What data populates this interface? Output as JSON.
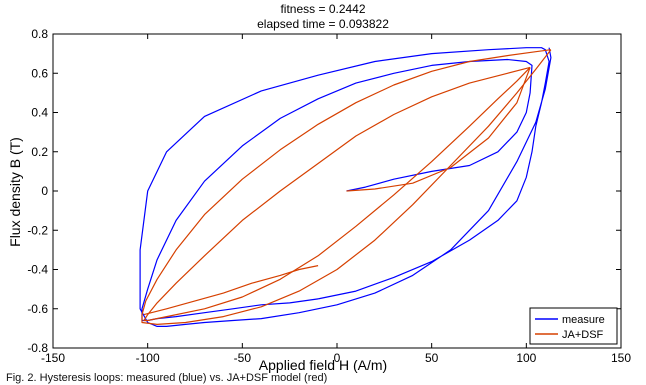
{
  "figure": {
    "title_line1": "fitness = 0.2442",
    "title_line2": "elapsed time = 0.093822",
    "caption": "Fig. 2. Hysteresis loops: measured (blue) vs. JA+DSF model (red)"
  },
  "chart_data": {
    "type": "line",
    "title": "fitness = 0.2442 / elapsed time = 0.093822",
    "xlabel": "Applied field H (A/m)",
    "ylabel": "Flux density B (T)",
    "xlim": [
      -150,
      150
    ],
    "ylim": [
      -0.8,
      0.8
    ],
    "xticks": [
      -150,
      -100,
      -50,
      0,
      50,
      100,
      150
    ],
    "yticks": [
      -0.8,
      -0.6,
      -0.4,
      -0.2,
      0,
      0.2,
      0.4,
      0.6,
      0.8
    ],
    "grid": false,
    "legend_position": "bottom-right",
    "series": [
      {
        "name": "measure",
        "color": "#0000ff",
        "segments": [
          {
            "x": [
              5,
              15,
              30,
              50,
              70,
              85,
              95,
              100,
              102,
              103,
              100,
              90,
              70,
              50,
              30,
              10,
              -10,
              -30,
              -50,
              -70,
              -85,
              -95,
              -100,
              -103,
              -103,
              -100,
              -95,
              -85,
              -70,
              -55,
              -40,
              -25,
              -10
            ],
            "y": [
              0.0,
              0.02,
              0.06,
              0.1,
              0.13,
              0.2,
              0.3,
              0.4,
              0.5,
              0.64,
              0.66,
              0.67,
              0.66,
              0.64,
              0.6,
              0.55,
              0.47,
              0.37,
              0.23,
              0.05,
              -0.15,
              -0.35,
              -0.5,
              -0.6,
              -0.66,
              -0.66,
              -0.65,
              -0.64,
              -0.62,
              -0.6,
              -0.58,
              -0.57,
              -0.55
            ]
          },
          {
            "x": [
              -10,
              10,
              30,
              50,
              70,
              85,
              95,
              100,
              103,
              105,
              108,
              110,
              112,
              110,
              108,
              100,
              80,
              50,
              20,
              -10,
              -40,
              -70,
              -90,
              -100,
              -104,
              -104,
              -100,
              -95,
              -90,
              -80,
              -70,
              -55,
              -40,
              -20,
              0,
              20,
              40,
              60,
              80,
              95,
              105,
              110,
              113,
              112
            ],
            "y": [
              -0.55,
              -0.51,
              -0.44,
              -0.36,
              -0.25,
              -0.15,
              -0.05,
              0.07,
              0.2,
              0.33,
              0.45,
              0.55,
              0.66,
              0.72,
              0.73,
              0.73,
              0.72,
              0.7,
              0.66,
              0.59,
              0.51,
              0.38,
              0.2,
              0.0,
              -0.3,
              -0.6,
              -0.67,
              -0.69,
              -0.69,
              -0.68,
              -0.67,
              -0.66,
              -0.65,
              -0.62,
              -0.58,
              -0.52,
              -0.43,
              -0.3,
              -0.1,
              0.15,
              0.35,
              0.52,
              0.68,
              0.73
            ]
          }
        ]
      },
      {
        "name": "JA+DSF",
        "color": "#d64000",
        "segments": [
          {
            "x": [
              5,
              20,
              40,
              60,
              80,
              95,
              102
            ],
            "y": [
              0.0,
              0.01,
              0.04,
              0.12,
              0.27,
              0.45,
              0.63
            ]
          },
          {
            "x": [
              102,
              90,
              70,
              50,
              30,
              10,
              -10,
              -30,
              -50,
              -70,
              -85,
              -95,
              -100,
              -102,
              -100,
              -90,
              -70,
              -50,
              -30,
              -10,
              10,
              30,
              50,
              70,
              85,
              95,
              102
            ],
            "y": [
              0.63,
              0.6,
              0.55,
              0.48,
              0.39,
              0.28,
              0.14,
              0.0,
              -0.15,
              -0.33,
              -0.47,
              -0.57,
              -0.63,
              -0.66,
              -0.66,
              -0.64,
              -0.6,
              -0.54,
              -0.45,
              -0.33,
              -0.18,
              -0.02,
              0.15,
              0.33,
              0.47,
              0.56,
              0.63
            ]
          },
          {
            "x": [
              113,
              105,
              90,
              70,
              50,
              30,
              10,
              -10,
              -30,
              -50,
              -70,
              -85,
              -95,
              -101,
              -103,
              -103,
              -95,
              -80,
              -60,
              -40,
              -20,
              0,
              20,
              40,
              60,
              80,
              95,
              105,
              113
            ],
            "y": [
              0.72,
              0.71,
              0.69,
              0.66,
              0.61,
              0.54,
              0.45,
              0.34,
              0.21,
              0.06,
              -0.12,
              -0.3,
              -0.45,
              -0.56,
              -0.63,
              -0.67,
              -0.68,
              -0.67,
              -0.64,
              -0.59,
              -0.51,
              -0.4,
              -0.25,
              -0.07,
              0.13,
              0.33,
              0.5,
              0.62,
              0.72
            ]
          },
          {
            "x": [
              -102,
              -90,
              -75,
              -60,
              -45,
              -30,
              -20,
              -10
            ],
            "y": [
              -0.63,
              -0.6,
              -0.56,
              -0.52,
              -0.47,
              -0.43,
              -0.4,
              -0.38
            ]
          }
        ]
      }
    ]
  }
}
